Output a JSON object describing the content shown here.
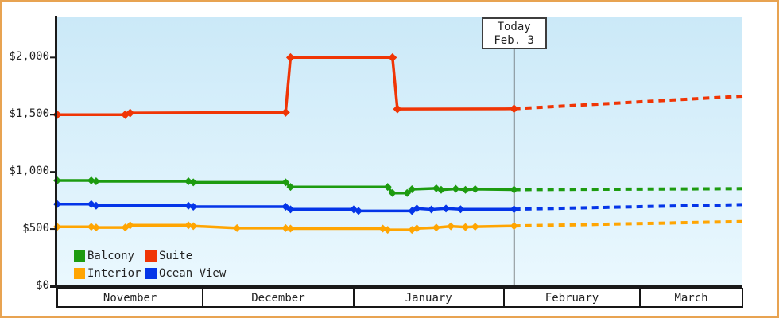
{
  "frame": {
    "border_color": "#e8a351",
    "background": "#ffffff"
  },
  "chart_data": {
    "type": "line",
    "title": "",
    "x_unit": "days_since_Nov_1",
    "x_range": [
      0,
      141
    ],
    "ylim": [
      0,
      2350
    ],
    "grid": false,
    "legend_position": "inside-bottom-left",
    "plot_background_top": "#cbe9f8",
    "plot_background_bottom": "#eaf8fe",
    "axis_color": "#1a1a1a",
    "y_ticks": [
      {
        "label": "$0",
        "value": 0
      },
      {
        "label": "$500",
        "value": 500
      },
      {
        "label": "$1,000",
        "value": 1000
      },
      {
        "label": "$1,500",
        "value": 1500
      },
      {
        "label": "$2,000",
        "value": 2000
      }
    ],
    "months": [
      {
        "label": "November",
        "days": 30
      },
      {
        "label": "December",
        "days": 31
      },
      {
        "label": "January",
        "days": 31
      },
      {
        "label": "February",
        "days": 28
      },
      {
        "label": "March",
        "days": 21
      }
    ],
    "annotation": {
      "line1": "Today",
      "line2": "Feb. 3",
      "day": 94,
      "line_color": "#4a4a4a"
    },
    "series": [
      {
        "name": "Balcony",
        "color": "#1d9b10",
        "points": [
          [
            0,
            925
          ],
          [
            7,
            925
          ],
          [
            8,
            918
          ],
          [
            27,
            918
          ],
          [
            28,
            908
          ],
          [
            47,
            908
          ],
          [
            48,
            868
          ],
          [
            68,
            868
          ],
          [
            69,
            815
          ],
          [
            72,
            815
          ],
          [
            73,
            848
          ],
          [
            78,
            856
          ],
          [
            79,
            843
          ],
          [
            82,
            852
          ],
          [
            84,
            843
          ],
          [
            86,
            849
          ],
          [
            94,
            845
          ]
        ],
        "projection": [
          [
            94,
            845
          ],
          [
            141,
            853
          ]
        ]
      },
      {
        "name": "Suite",
        "color": "#f03505",
        "points": [
          [
            0,
            1500
          ],
          [
            14,
            1500
          ],
          [
            15,
            1515
          ],
          [
            47,
            1520
          ],
          [
            48,
            2000
          ],
          [
            69,
            2000
          ],
          [
            70,
            1550
          ],
          [
            94,
            1552
          ]
        ],
        "projection": [
          [
            94,
            1552
          ],
          [
            141,
            1662
          ]
        ]
      },
      {
        "name": "Interior",
        "color": "#ffa502",
        "points": [
          [
            0,
            520
          ],
          [
            7,
            520
          ],
          [
            8,
            514
          ],
          [
            14,
            514
          ],
          [
            15,
            533
          ],
          [
            27,
            533
          ],
          [
            28,
            526
          ],
          [
            37,
            508
          ],
          [
            47,
            508
          ],
          [
            48,
            504
          ],
          [
            67,
            504
          ],
          [
            68,
            493
          ],
          [
            73,
            493
          ],
          [
            74,
            506
          ],
          [
            78,
            513
          ],
          [
            81,
            524
          ],
          [
            84,
            517
          ],
          [
            86,
            521
          ],
          [
            94,
            527
          ]
        ],
        "projection": [
          [
            94,
            527
          ],
          [
            141,
            565
          ]
        ]
      },
      {
        "name": "Ocean View",
        "color": "#0435e8",
        "points": [
          [
            0,
            718
          ],
          [
            7,
            718
          ],
          [
            8,
            704
          ],
          [
            27,
            704
          ],
          [
            28,
            695
          ],
          [
            47,
            695
          ],
          [
            48,
            672
          ],
          [
            61,
            672
          ],
          [
            62,
            658
          ],
          [
            73,
            658
          ],
          [
            74,
            680
          ],
          [
            77,
            671
          ],
          [
            80,
            679
          ],
          [
            83,
            673
          ],
          [
            94,
            673
          ]
        ],
        "projection": [
          [
            94,
            673
          ],
          [
            141,
            713
          ]
        ]
      }
    ]
  }
}
